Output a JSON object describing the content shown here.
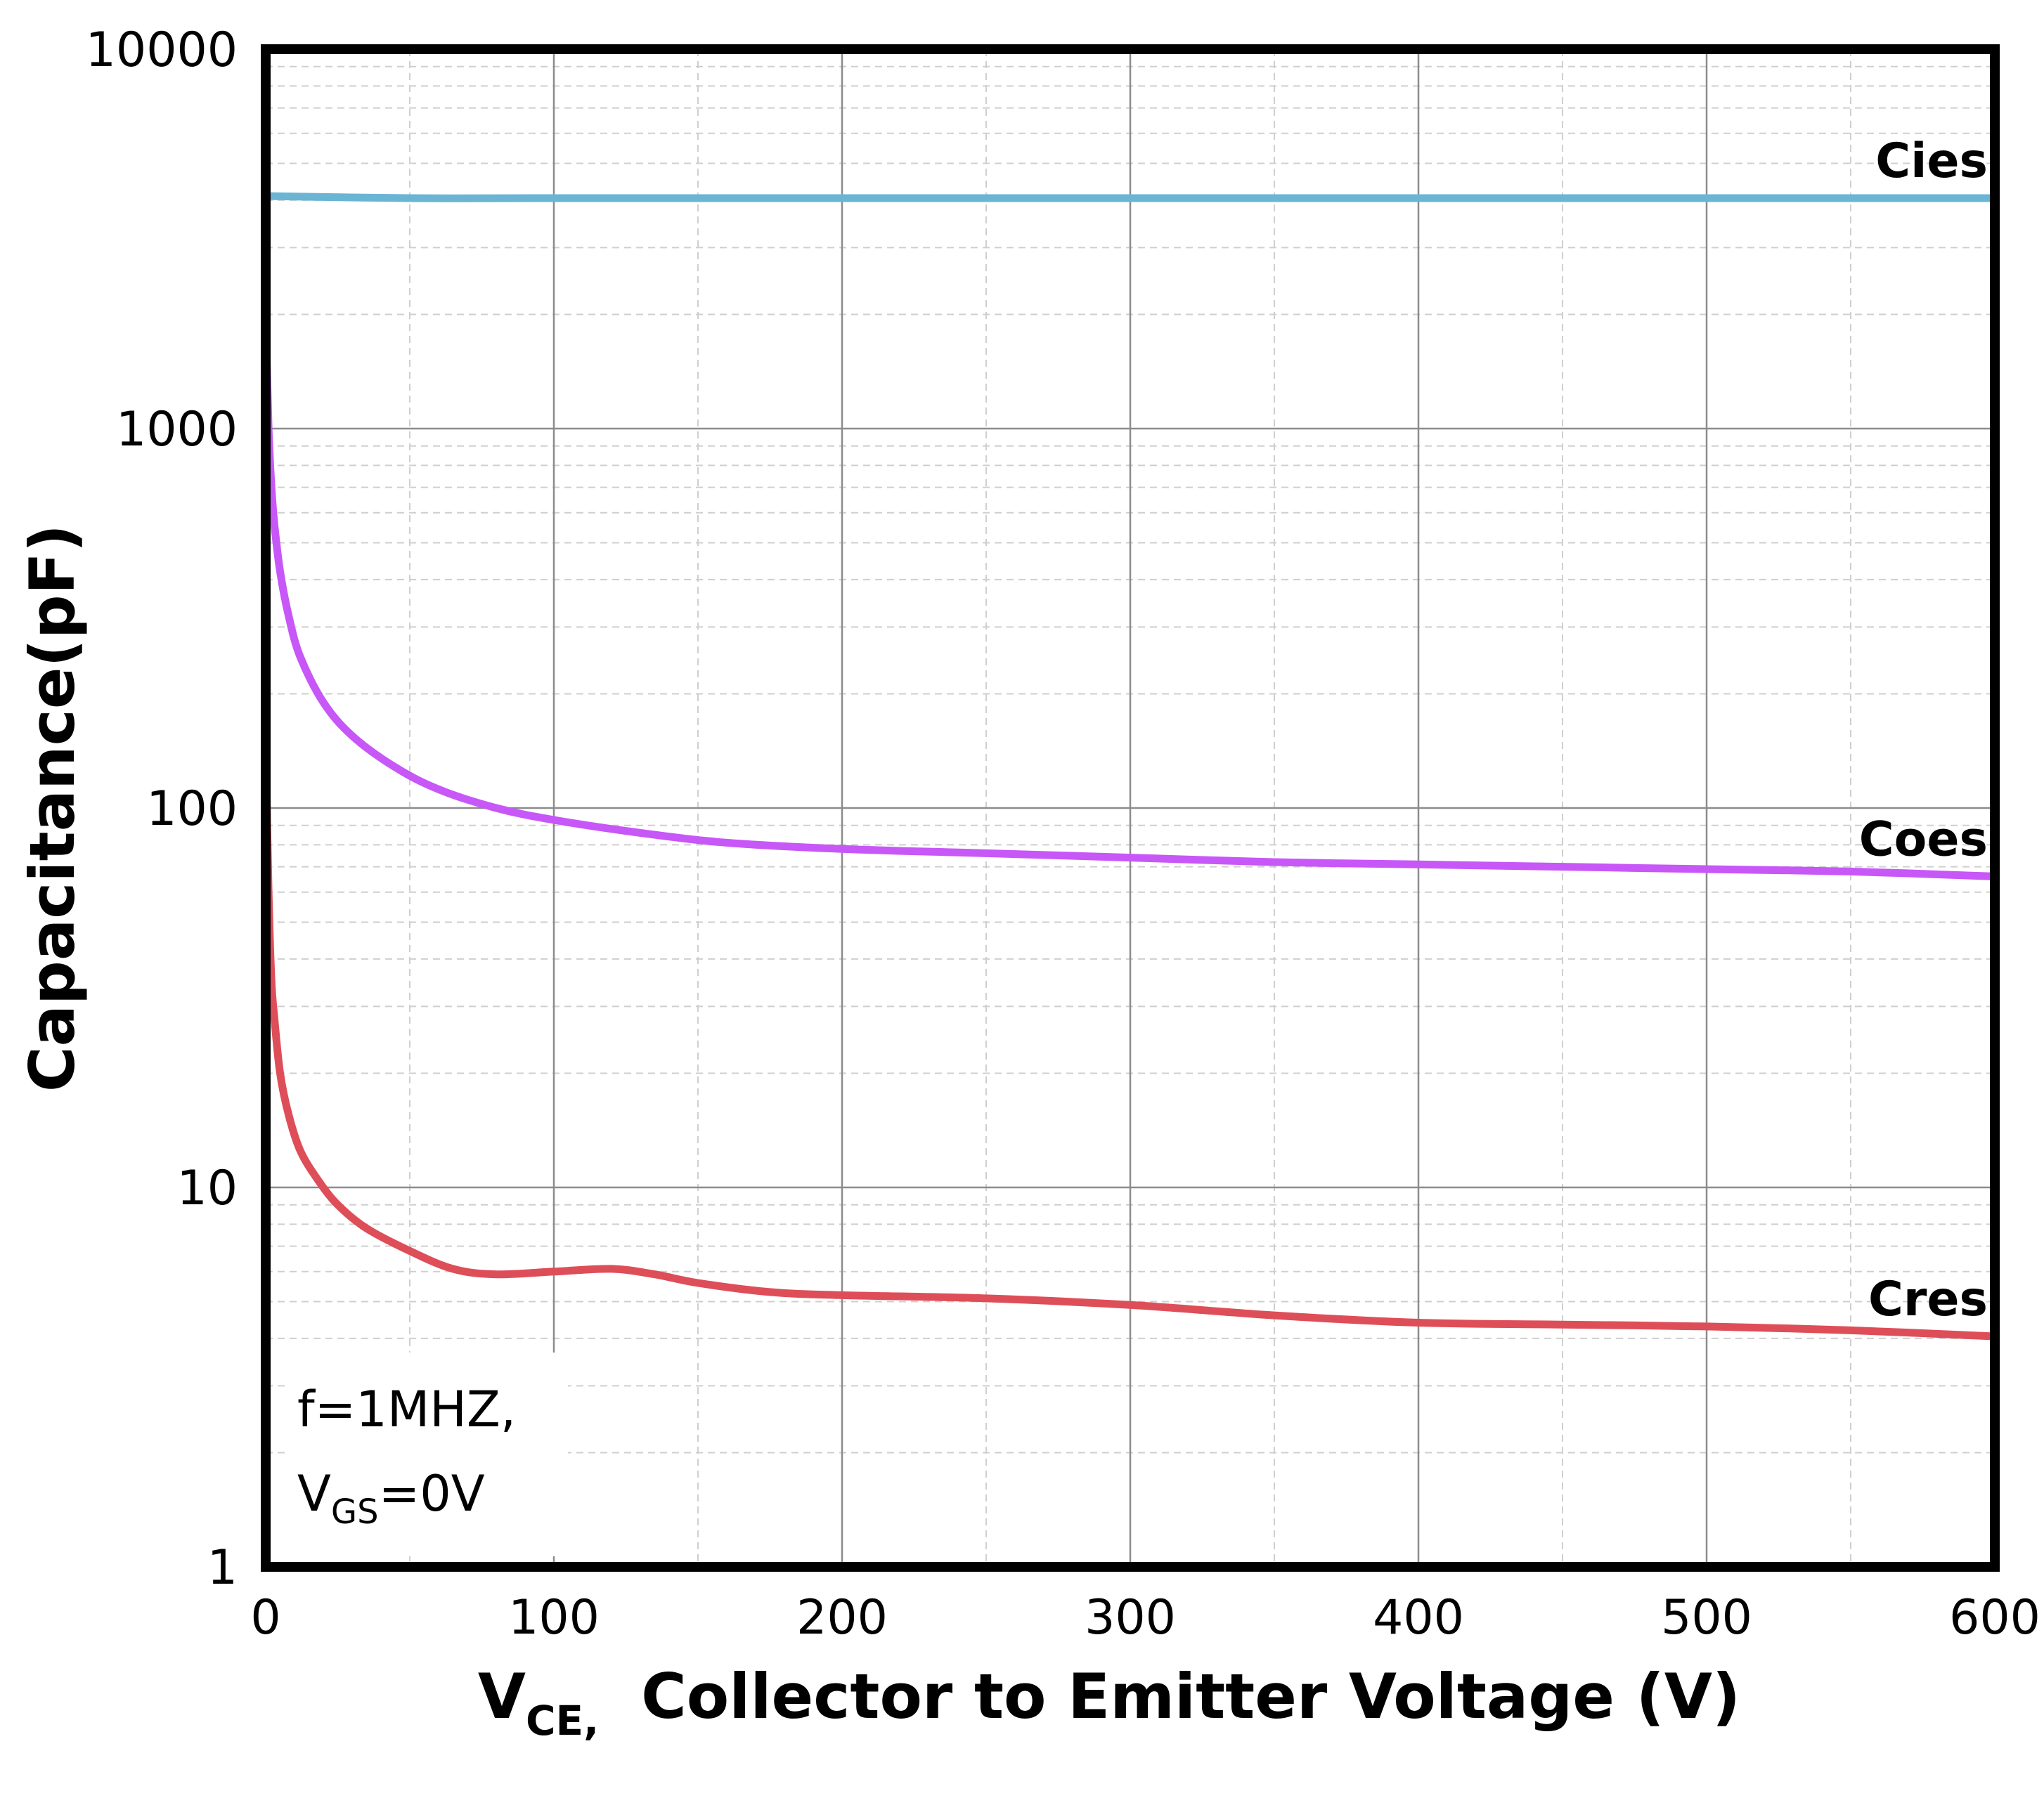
{
  "chart_data": {
    "type": "line",
    "title": "",
    "xlabel": {
      "main": "V",
      "sub": "CE,",
      "rest": "Collector to Emitter Voltage (V)"
    },
    "ylabel": "Capacitance(pF)",
    "xlim": [
      0,
      600
    ],
    "ylim": [
      1,
      10000
    ],
    "yscale": "log",
    "xticks": [
      "0",
      "100",
      "200",
      "300",
      "400",
      "500",
      "600"
    ],
    "yticks": [
      "1",
      "10",
      "100",
      "1000",
      "10000"
    ],
    "grid": true,
    "annotation": {
      "line1": "f=1MHZ,",
      "line2_main": "V",
      "line2_sub": "GS",
      "line2_rest": "=0V"
    },
    "series": [
      {
        "name": "Cies",
        "color": "#6ab4d4",
        "x": [
          0,
          50,
          100,
          200,
          300,
          400,
          500,
          600
        ],
        "y": [
          4100,
          4050,
          4050,
          4050,
          4050,
          4050,
          4050,
          4050
        ]
      },
      {
        "name": "Coes",
        "color": "#c757f7",
        "x": [
          0,
          1,
          2,
          3,
          5,
          8,
          12,
          20,
          30,
          45,
          60,
          80,
          100,
          130,
          160,
          200,
          250,
          300,
          350,
          400,
          450,
          500,
          550,
          600
        ],
        "y": [
          2000,
          1000,
          700,
          560,
          420,
          320,
          250,
          190,
          155,
          128,
          112,
          100,
          93,
          86,
          81,
          78,
          76,
          74,
          72,
          71,
          70,
          69,
          68,
          66
        ]
      },
      {
        "name": "Cres",
        "color": "#de4e58",
        "x": [
          0,
          1,
          2,
          3,
          5,
          8,
          12,
          18,
          25,
          35,
          50,
          65,
          80,
          100,
          120,
          135,
          150,
          175,
          200,
          250,
          300,
          350,
          400,
          450,
          500,
          550,
          600
        ],
        "y": [
          150,
          60,
          35,
          28,
          20,
          15.5,
          12.5,
          10.5,
          9,
          7.8,
          6.8,
          6.1,
          5.9,
          6.0,
          6.1,
          5.9,
          5.6,
          5.3,
          5.2,
          5.1,
          4.9,
          4.6,
          4.4,
          4.35,
          4.3,
          4.2,
          4.05
        ]
      }
    ]
  }
}
